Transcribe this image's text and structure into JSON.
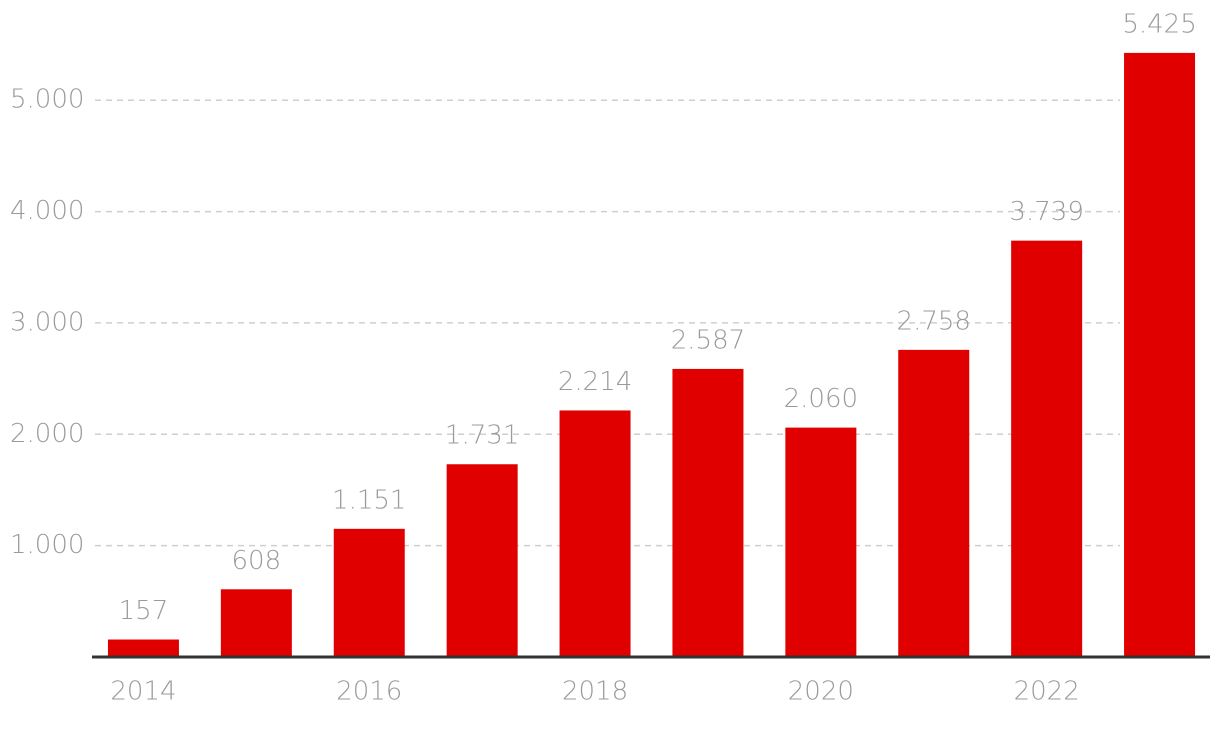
{
  "chart_data": {
    "type": "bar",
    "categories": [
      "2014",
      null,
      "2016",
      null,
      "2018",
      null,
      "2020",
      null,
      "2022",
      null
    ],
    "values": [
      157,
      608,
      1151,
      1731,
      2214,
      2587,
      2060,
      2758,
      3739,
      5425
    ],
    "value_labels": [
      "157",
      "608",
      "1.151",
      "1.731",
      "2.214",
      "2.587",
      "2.060",
      "2.758",
      "3.739",
      "5.425"
    ],
    "color": "#e00000",
    "ylim": [
      0,
      5900
    ],
    "yticks": [
      {
        "value": 1000,
        "label": "1.000"
      },
      {
        "value": 2000,
        "label": "2.000"
      },
      {
        "value": 3000,
        "label": "3.000"
      },
      {
        "value": 4000,
        "label": "4.000"
      },
      {
        "value": 5000,
        "label": "5.000"
      }
    ],
    "grid": true
  }
}
